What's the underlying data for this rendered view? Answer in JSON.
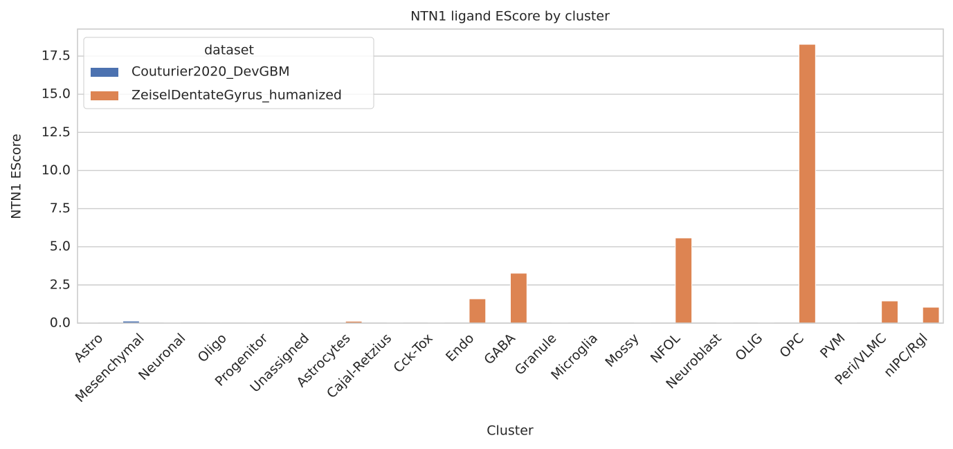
{
  "chart_data": {
    "type": "bar",
    "title": "NTN1 ligand EScore by cluster",
    "x_label": "Cluster",
    "y_label": "NTN1 EScore",
    "categories": [
      "Astro",
      "Mesenchymal",
      "Neuronal",
      "Oligo",
      "Progenitor",
      "Unassigned",
      "Astrocytes",
      "Cajal-Retzius",
      "Cck-Tox",
      "Endo",
      "GABA",
      "Granule",
      "Microglia",
      "Mossy",
      "NFOL",
      "Neuroblast",
      "OLIG",
      "OPC",
      "PVM",
      "Peri/VLMC",
      "nIPC/Rgl"
    ],
    "series": [
      {
        "name": "Couturier2020_DevGBM",
        "color": "#4c72b0",
        "values": [
          0.02,
          0.13,
          0.02,
          0.01,
          0.01,
          0.01,
          null,
          null,
          null,
          null,
          null,
          null,
          null,
          null,
          null,
          null,
          null,
          null,
          null,
          null,
          null
        ]
      },
      {
        "name": "ZeiselDentateGyrus_humanized",
        "color": "#dd8452",
        "values": [
          null,
          null,
          null,
          null,
          null,
          null,
          0.12,
          0.02,
          0.02,
          1.59,
          3.27,
          0.02,
          0.01,
          0.02,
          5.58,
          0.02,
          0.02,
          18.27,
          0.02,
          1.45,
          1.04
        ]
      }
    ],
    "legend_title": "dataset",
    "legend_position": "upper left",
    "ylim": [
      0,
      19.27
    ],
    "yticks": [
      {
        "value": 0,
        "label": "0.0"
      },
      2.5,
      {
        "value": 5,
        "label": "5.0"
      },
      7.5,
      {
        "value": 10,
        "label": "10.0"
      },
      12.5,
      {
        "value": 15,
        "label": "15.0"
      },
      17.5
    ],
    "grid": true
  }
}
